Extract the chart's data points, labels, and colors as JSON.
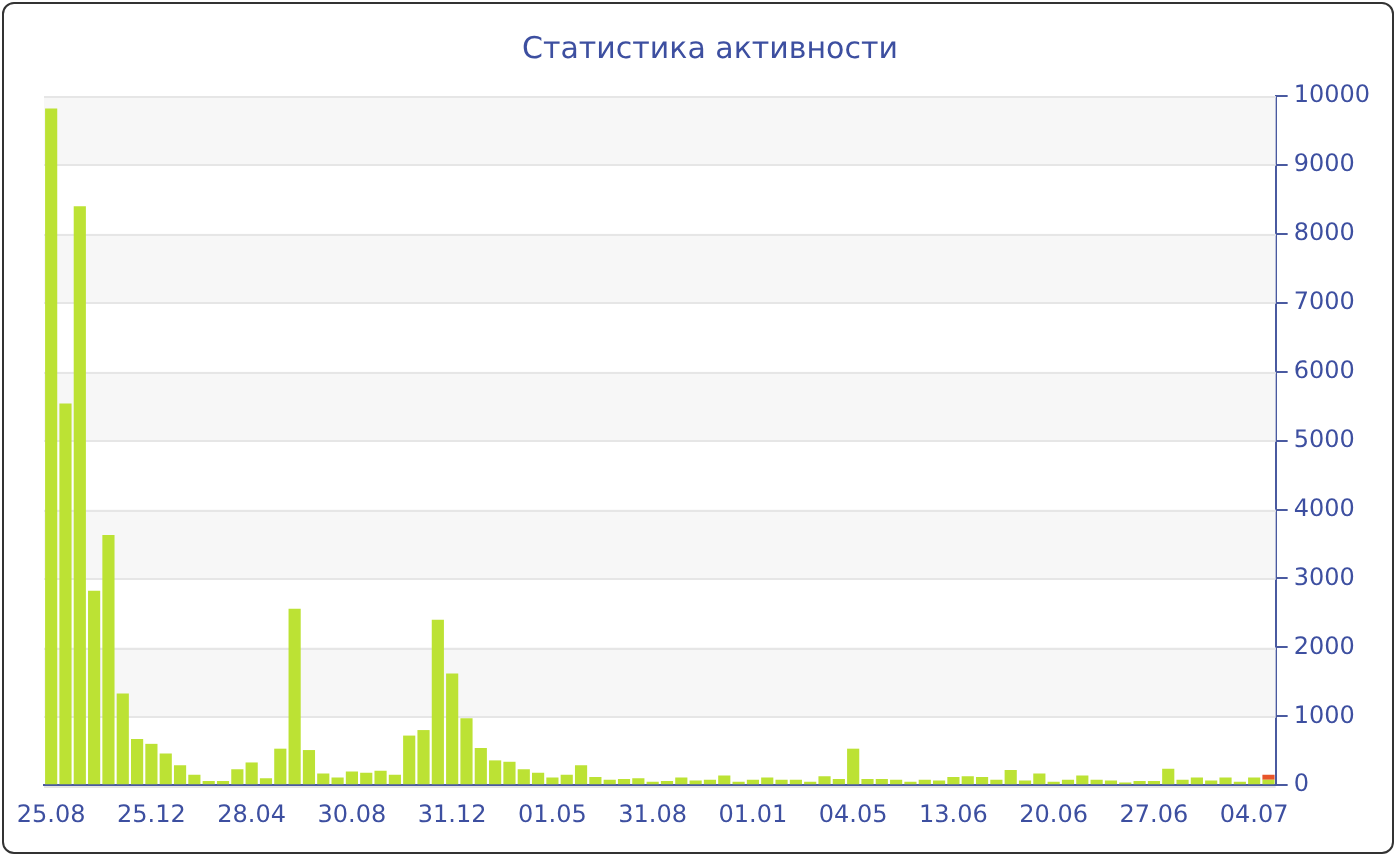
{
  "chart_data": {
    "type": "bar",
    "title": "Статистика активности",
    "stacked": true,
    "grid": "y",
    "legend": false,
    "categories": [
      "25.08",
      null,
      null,
      null,
      null,
      null,
      null,
      "25.12",
      null,
      null,
      null,
      null,
      null,
      null,
      "28.04",
      null,
      null,
      null,
      null,
      null,
      null,
      "30.08",
      null,
      null,
      null,
      null,
      null,
      null,
      "31.12",
      null,
      null,
      null,
      null,
      null,
      null,
      "01.05",
      null,
      null,
      null,
      null,
      null,
      null,
      "31.08",
      null,
      null,
      null,
      null,
      null,
      null,
      "01.01",
      null,
      null,
      null,
      null,
      null,
      null,
      "04.05",
      null,
      null,
      null,
      null,
      null,
      null,
      "13.06",
      null,
      null,
      null,
      null,
      null,
      null,
      "20.06",
      null,
      null,
      null,
      null,
      null,
      null,
      "27.06",
      null,
      null,
      null,
      null,
      null,
      null,
      "04.07",
      null
    ],
    "series": [
      {
        "color": "#bce234",
        "values": [
          9820,
          5540,
          8400,
          2820,
          3630,
          1330,
          670,
          600,
          460,
          290,
          150,
          60,
          60,
          230,
          330,
          100,
          530,
          2560,
          510,
          170,
          110,
          200,
          180,
          210,
          150,
          720,
          800,
          2400,
          1620,
          970,
          540,
          360,
          340,
          230,
          180,
          110,
          150,
          290,
          120,
          80,
          90,
          100,
          50,
          60,
          110,
          70,
          80,
          140,
          50,
          80,
          110,
          80,
          80,
          50,
          130,
          90,
          530,
          90,
          90,
          80,
          50,
          80,
          70,
          120,
          130,
          120,
          80,
          220,
          70,
          170,
          50,
          80,
          140,
          80,
          70,
          40,
          60,
          60,
          240,
          80,
          110,
          70,
          110,
          50,
          110,
          80
        ]
      },
      {
        "color": "#e8552a",
        "values": [
          null,
          null,
          null,
          null,
          null,
          null,
          null,
          null,
          null,
          null,
          null,
          null,
          null,
          null,
          null,
          null,
          null,
          null,
          null,
          null,
          null,
          null,
          null,
          null,
          null,
          null,
          null,
          null,
          null,
          null,
          null,
          null,
          null,
          null,
          null,
          null,
          null,
          null,
          null,
          null,
          null,
          null,
          null,
          null,
          null,
          null,
          null,
          null,
          null,
          null,
          null,
          null,
          null,
          null,
          null,
          null,
          null,
          null,
          null,
          null,
          null,
          null,
          null,
          null,
          null,
          null,
          null,
          null,
          null,
          null,
          null,
          null,
          null,
          null,
          null,
          null,
          null,
          null,
          null,
          null,
          null,
          null,
          null,
          null,
          null,
          70
        ]
      }
    ],
    "ylim": [
      0,
      10000
    ],
    "yticks": [
      0,
      1000,
      2000,
      3000,
      4000,
      5000,
      6000,
      7000,
      8000,
      9000,
      10000
    ]
  }
}
